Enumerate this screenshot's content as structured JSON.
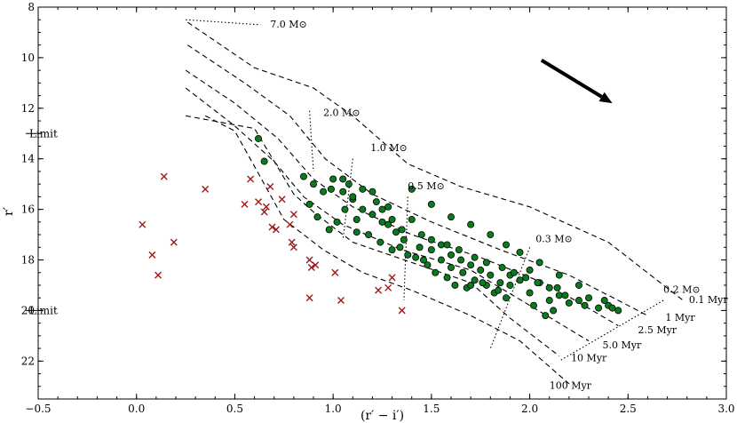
{
  "chart_data": {
    "type": "scatter",
    "xlabel": "(r′ − i′)",
    "ylabel": "r′",
    "xlim": [
      -0.5,
      3.0
    ],
    "ylim": [
      23.5,
      8.0
    ],
    "y_inverted": true,
    "xticks": [
      -0.5,
      0.0,
      0.5,
      1.0,
      1.5,
      2.0,
      2.5,
      3.0
    ],
    "yticks": [
      8,
      10,
      12,
      14,
      16,
      18,
      20,
      22
    ],
    "colors": {
      "member": "#0a7a1e",
      "nonmember": "#a01818"
    },
    "limit_lines": [
      {
        "y": 13.0,
        "label": "Limit"
      },
      {
        "y": 20.0,
        "label": "Limit"
      }
    ],
    "reddening_vector": {
      "from": [
        2.06,
        10.1
      ],
      "to": [
        2.42,
        11.8
      ]
    },
    "isochrones": [
      {
        "label": "0.1 Myr",
        "label_at": [
          2.81,
          19.7
        ],
        "points": [
          [
            0.26,
            8.6
          ],
          [
            0.6,
            10.4
          ],
          [
            0.9,
            11.2
          ],
          [
            1.1,
            12.3
          ],
          [
            1.38,
            14.2
          ],
          [
            1.65,
            15.1
          ],
          [
            2.0,
            15.9
          ],
          [
            2.4,
            17.3
          ],
          [
            2.78,
            19.6
          ]
        ]
      },
      {
        "label": "1 Myr",
        "label_at": [
          2.69,
          20.4
        ],
        "points": [
          [
            0.26,
            9.5
          ],
          [
            0.55,
            11.0
          ],
          [
            0.78,
            12.3
          ],
          [
            0.96,
            14.0
          ],
          [
            1.2,
            15.4
          ],
          [
            1.5,
            16.5
          ],
          [
            1.85,
            17.6
          ],
          [
            2.2,
            18.6
          ],
          [
            2.6,
            20.2
          ]
        ]
      },
      {
        "label": "2.5 Myr",
        "label_at": [
          2.55,
          20.9
        ],
        "points": [
          [
            0.25,
            10.5
          ],
          [
            0.5,
            11.8
          ],
          [
            0.72,
            13.2
          ],
          [
            0.9,
            14.8
          ],
          [
            1.1,
            15.9
          ],
          [
            1.4,
            17.0
          ],
          [
            1.75,
            17.9
          ],
          [
            2.1,
            19.0
          ],
          [
            2.45,
            20.6
          ]
        ]
      },
      {
        "label": "5.0 Myr",
        "label_at": [
          2.37,
          21.5
        ],
        "points": [
          [
            0.25,
            11.2
          ],
          [
            0.5,
            12.7
          ],
          [
            0.7,
            14.1
          ],
          [
            0.85,
            15.5
          ],
          [
            1.05,
            16.6
          ],
          [
            1.35,
            17.6
          ],
          [
            1.7,
            18.4
          ],
          [
            2.0,
            19.8
          ],
          [
            2.3,
            21.2
          ]
        ]
      },
      {
        "label": "10 Myr",
        "label_at": [
          2.21,
          22.0
        ],
        "points": [
          [
            0.25,
            12.3
          ],
          [
            0.6,
            12.8
          ],
          [
            0.8,
            15.4
          ],
          [
            0.9,
            16.1
          ],
          [
            1.1,
            17.3
          ],
          [
            1.4,
            18.1
          ],
          [
            1.7,
            18.9
          ],
          [
            1.9,
            20.3
          ],
          [
            2.15,
            21.8
          ]
        ]
      },
      {
        "label": "100 Myr",
        "label_at": [
          2.1,
          23.1
        ],
        "points": [
          [
            0.35,
            12.3
          ],
          [
            0.5,
            12.9
          ],
          [
            0.75,
            16.4
          ],
          [
            0.95,
            17.6
          ],
          [
            1.15,
            18.5
          ],
          [
            1.4,
            19.2
          ],
          [
            1.7,
            20.2
          ],
          [
            1.95,
            21.2
          ],
          [
            2.2,
            22.9
          ]
        ]
      }
    ],
    "mass_tracks": [
      {
        "label": "7.0 M⊙",
        "label_at": [
          0.68,
          8.8
        ],
        "points": [
          [
            0.25,
            8.5
          ],
          [
            0.63,
            8.7
          ]
        ]
      },
      {
        "label": "2.0 M⊙",
        "label_at": [
          0.95,
          12.3
        ],
        "points": [
          [
            0.88,
            12.1
          ],
          [
            0.9,
            14.5
          ]
        ]
      },
      {
        "label": "1.0 M⊙",
        "label_at": [
          1.19,
          13.7
        ],
        "points": [
          [
            1.1,
            14.0
          ],
          [
            1.05,
            17.2
          ]
        ]
      },
      {
        "label": "0.5 M⊙",
        "label_at": [
          1.38,
          15.2
        ],
        "points": [
          [
            1.38,
            15.5
          ],
          [
            1.36,
            19.6
          ]
        ]
      },
      {
        "label": "0.3 M⊙",
        "label_at": [
          2.03,
          17.3
        ],
        "points": [
          [
            2.0,
            17.5
          ],
          [
            1.8,
            21.5
          ]
        ]
      },
      {
        "label": "0.2 M⊙",
        "label_at": [
          2.68,
          19.3
        ],
        "points": [
          [
            2.68,
            19.6
          ],
          [
            2.15,
            22.0
          ]
        ]
      }
    ],
    "members": [
      [
        0.62,
        13.2
      ],
      [
        0.65,
        14.1
      ],
      [
        0.85,
        14.7
      ],
      [
        0.9,
        15.0
      ],
      [
        0.95,
        15.3
      ],
      [
        0.99,
        15.2
      ],
      [
        1.0,
        14.8
      ],
      [
        1.05,
        15.3
      ],
      [
        1.08,
        15.0
      ],
      [
        1.1,
        15.6
      ],
      [
        1.15,
        16.0
      ],
      [
        1.2,
        15.3
      ],
      [
        1.22,
        15.7
      ],
      [
        1.25,
        16.0
      ],
      [
        1.28,
        15.9
      ],
      [
        1.3,
        16.4
      ],
      [
        1.35,
        16.8
      ],
      [
        1.4,
        16.4
      ],
      [
        1.45,
        17.0
      ],
      [
        1.5,
        17.2
      ],
      [
        1.55,
        17.4
      ],
      [
        1.6,
        17.8
      ],
      [
        1.65,
        18.0
      ],
      [
        1.7,
        18.2
      ],
      [
        1.75,
        18.4
      ],
      [
        1.8,
        18.6
      ],
      [
        1.85,
        18.9
      ],
      [
        1.9,
        18.6
      ],
      [
        1.95,
        18.8
      ],
      [
        2.0,
        18.4
      ],
      [
        2.05,
        18.9
      ],
      [
        2.1,
        19.1
      ],
      [
        2.15,
        19.4
      ],
      [
        2.2,
        19.7
      ],
      [
        2.25,
        19.6
      ],
      [
        2.3,
        19.5
      ],
      [
        2.35,
        19.9
      ],
      [
        2.4,
        19.8
      ],
      [
        2.45,
        20.0
      ],
      [
        0.88,
        15.8
      ],
      [
        0.92,
        16.3
      ],
      [
        0.98,
        16.8
      ],
      [
        1.02,
        16.5
      ],
      [
        1.06,
        16.0
      ],
      [
        1.12,
        16.9
      ],
      [
        1.18,
        17.0
      ],
      [
        1.24,
        17.3
      ],
      [
        1.3,
        17.6
      ],
      [
        1.38,
        17.8
      ],
      [
        1.42,
        17.9
      ],
      [
        1.48,
        18.2
      ],
      [
        1.52,
        18.5
      ],
      [
        1.58,
        18.7
      ],
      [
        1.62,
        19.0
      ],
      [
        1.68,
        19.1
      ],
      [
        1.72,
        18.8
      ],
      [
        1.78,
        19.0
      ],
      [
        1.82,
        19.3
      ],
      [
        1.88,
        19.5
      ],
      [
        2.02,
        19.8
      ],
      [
        2.08,
        20.2
      ],
      [
        2.12,
        20.0
      ],
      [
        1.4,
        15.2
      ],
      [
        1.5,
        15.8
      ],
      [
        1.6,
        16.3
      ],
      [
        1.7,
        16.6
      ],
      [
        1.8,
        17.0
      ],
      [
        1.88,
        17.4
      ],
      [
        1.95,
        17.7
      ],
      [
        2.05,
        18.1
      ],
      [
        2.15,
        18.6
      ],
      [
        2.25,
        19.0
      ],
      [
        1.05,
        14.8
      ],
      [
        1.1,
        15.5
      ],
      [
        1.15,
        15.2
      ],
      [
        1.2,
        16.2
      ],
      [
        1.25,
        16.5
      ],
      [
        1.32,
        16.9
      ],
      [
        1.36,
        17.2
      ],
      [
        1.44,
        17.5
      ],
      [
        1.46,
        18.0
      ],
      [
        1.55,
        18.0
      ],
      [
        1.6,
        18.3
      ],
      [
        1.66,
        18.5
      ],
      [
        1.7,
        19.0
      ],
      [
        1.76,
        18.9
      ],
      [
        1.84,
        19.2
      ],
      [
        1.9,
        19.0
      ],
      [
        2.0,
        19.3
      ],
      [
        2.1,
        19.6
      ],
      [
        2.18,
        19.4
      ],
      [
        2.28,
        19.8
      ],
      [
        1.58,
        17.4
      ],
      [
        1.64,
        17.6
      ],
      [
        1.72,
        17.9
      ],
      [
        1.78,
        18.1
      ],
      [
        1.86,
        18.3
      ],
      [
        1.92,
        18.5
      ],
      [
        1.98,
        18.7
      ],
      [
        2.04,
        18.9
      ],
      [
        2.14,
        19.1
      ],
      [
        1.12,
        16.4
      ],
      [
        1.28,
        16.6
      ],
      [
        1.34,
        17.5
      ],
      [
        1.5,
        17.6
      ],
      [
        2.38,
        19.6
      ],
      [
        2.42,
        19.9
      ]
    ],
    "non_members": [
      [
        0.03,
        16.6
      ],
      [
        0.08,
        17.8
      ],
      [
        0.11,
        18.6
      ],
      [
        0.14,
        14.7
      ],
      [
        0.19,
        17.3
      ],
      [
        0.35,
        15.2
      ],
      [
        0.55,
        15.8
      ],
      [
        0.58,
        14.8
      ],
      [
        0.62,
        15.7
      ],
      [
        0.65,
        16.1
      ],
      [
        0.66,
        15.9
      ],
      [
        0.68,
        15.1
      ],
      [
        0.69,
        16.7
      ],
      [
        0.71,
        16.8
      ],
      [
        0.74,
        15.6
      ],
      [
        0.78,
        16.6
      ],
      [
        0.79,
        17.3
      ],
      [
        0.8,
        17.5
      ],
      [
        0.8,
        16.2
      ],
      [
        0.88,
        18.0
      ],
      [
        0.89,
        18.3
      ],
      [
        0.91,
        18.2
      ],
      [
        0.88,
        19.5
      ],
      [
        1.01,
        18.5
      ],
      [
        1.04,
        19.6
      ],
      [
        1.23,
        19.2
      ],
      [
        1.28,
        19.1
      ],
      [
        1.3,
        18.7
      ],
      [
        1.35,
        20.0
      ]
    ]
  }
}
